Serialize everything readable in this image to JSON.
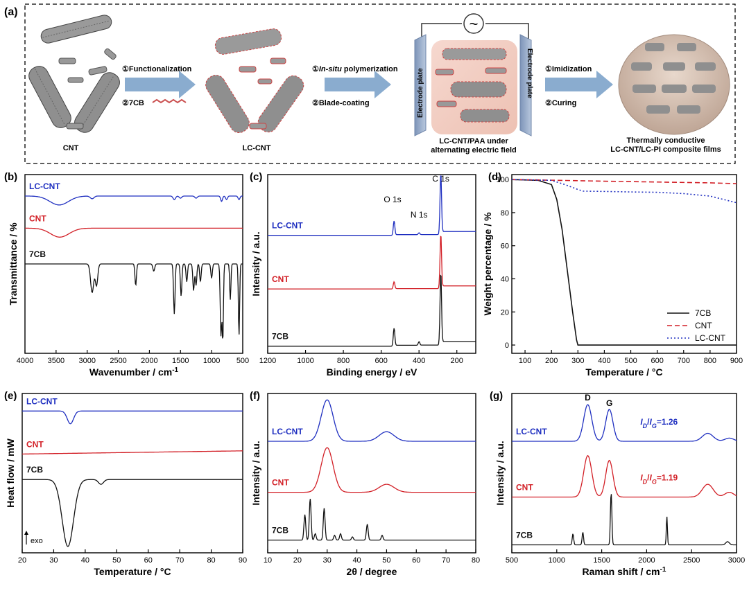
{
  "colors": {
    "cnt": "#d21f26",
    "lc_cnt": "#1f2fc0",
    "c7cb": "#111111",
    "arrow": "#8aaccf",
    "axis": "#000000"
  },
  "panel_a": {
    "label": "(a)",
    "cnt": "CNT",
    "lc_cnt": "LC-CNT",
    "step1_a": "①Functionalization",
    "step1_b": "②7CB",
    "step2_a_prefix": "①",
    "step2_a_italic": "In-situ",
    "step2_a_suffix": " polymerization",
    "step2_b": "②Blade-coating",
    "electrode_left": "Electrode plate",
    "electrode_right": "Electrode plate",
    "ac_symbol": "~",
    "field_caption_1": "LC-CNT/PAA under",
    "field_caption_2": "alternating electric field",
    "step3_a": "①Imidization",
    "step3_b": "②Curing",
    "film_caption_1": "Thermally conductive",
    "film_caption_2": "LC-CNT/LC-PI composite films"
  },
  "chart_data": [
    {
      "id": "b",
      "panel_label": "(b)",
      "type": "line",
      "xlabel": "Wavenumber / cm",
      "xlabel_sup": "-1",
      "ylabel": "Transmittance / %",
      "xlim": [
        4000,
        500
      ],
      "xticks": [
        "4000",
        "3500",
        "3000",
        "2500",
        "2000",
        "1500",
        "1000",
        "500"
      ],
      "yticks_shown": false,
      "series": [
        {
          "name": "LC-CNT",
          "color": "#1f2fc0",
          "label": "LC-CNT",
          "baseline": 0.12,
          "features": [
            [
              3450,
              0.05,
              150
            ],
            [
              2920,
              0.015,
              30
            ],
            [
              1600,
              0.02,
              20
            ],
            [
              1500,
              0.012,
              20
            ],
            [
              1250,
              0.012,
              20
            ],
            [
              840,
              0.03,
              15
            ],
            [
              760,
              0.02,
              15
            ],
            [
              560,
              0.02,
              15
            ]
          ]
        },
        {
          "name": "CNT",
          "color": "#d21f26",
          "label": "CNT",
          "baseline": 0.3,
          "features": [
            [
              3440,
              0.05,
              150
            ]
          ]
        },
        {
          "name": "7CB",
          "color": "#111111",
          "label": "7CB",
          "baseline": 0.5,
          "features": [
            [
              2920,
              0.16,
              25
            ],
            [
              2850,
              0.12,
              20
            ],
            [
              2220,
              0.12,
              12
            ],
            [
              1930,
              0.04,
              15
            ],
            [
              1600,
              0.28,
              12
            ],
            [
              1490,
              0.18,
              12
            ],
            [
              1400,
              0.1,
              12
            ],
            [
              1290,
              0.15,
              12
            ],
            [
              1250,
              0.12,
              12
            ],
            [
              1180,
              0.1,
              12
            ],
            [
              1000,
              0.08,
              12
            ],
            [
              850,
              0.4,
              12
            ],
            [
              820,
              0.42,
              10
            ],
            [
              700,
              0.2,
              10
            ],
            [
              560,
              0.4,
              10
            ]
          ]
        }
      ]
    },
    {
      "id": "c",
      "panel_label": "(c)",
      "type": "line",
      "xlabel": "Binding energy / eV",
      "ylabel": "Intensity / a.u.",
      "xlim": [
        1200,
        100
      ],
      "xticks": [
        "1200",
        "1000",
        "800",
        "600",
        "400",
        "200"
      ],
      "yticks_shown": false,
      "annotations": [
        "O 1s",
        "N 1s",
        "C 1s"
      ],
      "series": [
        {
          "name": "LC-CNT",
          "color": "#1f2fc0",
          "label": "LC-CNT",
          "baseline": 0.34,
          "peaks": [
            [
              532,
              0.08
            ],
            [
              400,
              0.01
            ],
            [
              285,
              0.34
            ]
          ]
        },
        {
          "name": "CNT",
          "color": "#d21f26",
          "label": "CNT",
          "baseline": 0.64,
          "peaks": [
            [
              532,
              0.04
            ],
            [
              285,
              0.3
            ]
          ]
        },
        {
          "name": "7CB",
          "color": "#111111",
          "label": "7CB",
          "baseline": 0.96,
          "peaks": [
            [
              532,
              0.1
            ],
            [
              400,
              0.02
            ],
            [
              285,
              0.4
            ]
          ]
        }
      ]
    },
    {
      "id": "d",
      "panel_label": "(d)",
      "type": "line",
      "xlabel": "Temperature / °C",
      "ylabel": "Weight percentage / %",
      "xlim": [
        50,
        900
      ],
      "ylim": [
        -5,
        103
      ],
      "xticks": [
        100,
        200,
        300,
        400,
        500,
        600,
        700,
        800,
        900
      ],
      "yticks": [
        0,
        20,
        40,
        60,
        80,
        100
      ],
      "legend_position": "bottom-right",
      "series": [
        {
          "name": "7CB",
          "color": "#111111",
          "dash": "solid",
          "x": [
            50,
            150,
            200,
            220,
            240,
            260,
            280,
            295,
            300,
            900
          ],
          "y": [
            100,
            99.5,
            97,
            88,
            70,
            45,
            20,
            3,
            0,
            0
          ]
        },
        {
          "name": "CNT",
          "color": "#d21f26",
          "dash": "dashed",
          "x": [
            50,
            200,
            400,
            600,
            800,
            900
          ],
          "y": [
            100,
            99.6,
            99,
            98.5,
            98,
            97.5
          ]
        },
        {
          "name": "LC-CNT",
          "color": "#1f2fc0",
          "dash": "dotted",
          "x": [
            50,
            200,
            250,
            300,
            320,
            400,
            500,
            600,
            700,
            800,
            850,
            900
          ],
          "y": [
            100,
            99.5,
            97,
            94,
            93,
            92.8,
            92.5,
            92.3,
            91.5,
            90,
            88,
            86
          ]
        }
      ]
    },
    {
      "id": "e",
      "panel_label": "(e)",
      "type": "line",
      "xlabel": "Temperature / °C",
      "ylabel": "Heat flow / mW",
      "xlim": [
        20,
        90
      ],
      "xticks": [
        20,
        30,
        40,
        50,
        60,
        70,
        80,
        90
      ],
      "yticks_shown": false,
      "annotation": "exo",
      "series": [
        {
          "name": "LC-CNT",
          "color": "#1f2fc0",
          "label": "LC-CNT",
          "baseline": 0.11,
          "peaks": [
            [
              35.3,
              0.08,
              1.0
            ]
          ]
        },
        {
          "name": "CNT",
          "color": "#d21f26",
          "label": "CNT",
          "baseline": 0.38,
          "slope": -0.02,
          "peaks": []
        },
        {
          "name": "7CB",
          "color": "#111111",
          "label": "7CB",
          "baseline": 0.54,
          "peaks": [
            [
              34.5,
              0.42,
              1.8
            ],
            [
              45,
              0.03,
              0.8
            ]
          ]
        }
      ]
    },
    {
      "id": "f",
      "panel_label": "(f)",
      "type": "line",
      "xlabel": "2θ / degree",
      "ylabel": "Intensity / a.u.",
      "xlim": [
        10,
        80
      ],
      "xticks": [
        10,
        20,
        30,
        40,
        50,
        60,
        70,
        80
      ],
      "yticks_shown": false,
      "series": [
        {
          "name": "LC-CNT",
          "color": "#1f2fc0",
          "label": "LC-CNT",
          "baseline": 0.3,
          "peaks": [
            [
              30,
              0.26,
              2.0
            ],
            [
              50,
              0.06,
              2.5
            ]
          ]
        },
        {
          "name": "CNT",
          "color": "#d21f26",
          "label": "CNT",
          "baseline": 0.62,
          "peaks": [
            [
              30,
              0.28,
              2.0
            ],
            [
              50,
              0.05,
              2.5
            ]
          ]
        },
        {
          "name": "7CB",
          "color": "#111111",
          "label": "7CB",
          "baseline": 0.92,
          "peaks": [
            [
              22.5,
              0.16,
              0.3
            ],
            [
              24.3,
              0.26,
              0.3
            ],
            [
              26,
              0.04,
              0.3
            ],
            [
              29,
              0.2,
              0.3
            ],
            [
              32.5,
              0.03,
              0.3
            ],
            [
              34.5,
              0.04,
              0.3
            ],
            [
              38.5,
              0.02,
              0.3
            ],
            [
              43.5,
              0.1,
              0.3
            ],
            [
              48.5,
              0.03,
              0.3
            ]
          ]
        }
      ]
    },
    {
      "id": "g",
      "panel_label": "(g)",
      "type": "line",
      "xlabel": "Raman shift / cm",
      "xlabel_sup": "-1",
      "ylabel": "Intensity / a.u.",
      "xlim": [
        500,
        3000
      ],
      "xticks": [
        500,
        1000,
        1500,
        2000,
        2500,
        3000
      ],
      "yticks_shown": false,
      "annotations": [
        "D",
        "G"
      ],
      "ratio_labels": [
        {
          "series": "LC-CNT",
          "text_i": "I",
          "sub_d": "D",
          "slash": "/",
          "sub_g": "G",
          "value": "=1.26"
        },
        {
          "series": "CNT",
          "text_i": "I",
          "sub_d": "D",
          "slash": "/",
          "sub_g": "G",
          "value": "=1.19"
        }
      ],
      "series": [
        {
          "name": "LC-CNT",
          "color": "#1f2fc0",
          "label": "LC-CNT",
          "baseline": 0.3,
          "peaks": [
            [
              1345,
              0.23,
              45
            ],
            [
              1585,
              0.2,
              40
            ],
            [
              2680,
              0.05,
              60
            ],
            [
              2920,
              0.02,
              50
            ]
          ]
        },
        {
          "name": "CNT",
          "color": "#d21f26",
          "label": "CNT",
          "baseline": 0.65,
          "peaks": [
            [
              1345,
              0.26,
              45
            ],
            [
              1585,
              0.23,
              40
            ],
            [
              2680,
              0.08,
              60
            ],
            [
              2920,
              0.03,
              50
            ]
          ]
        },
        {
          "name": "7CB",
          "color": "#111111",
          "label": "7CB",
          "baseline": 0.95,
          "peaks": [
            [
              1180,
              0.07,
              8
            ],
            [
              1290,
              0.08,
              8
            ],
            [
              1605,
              0.33,
              8
            ],
            [
              2225,
              0.18,
              6
            ],
            [
              2900,
              0.02,
              20
            ]
          ]
        }
      ]
    }
  ]
}
